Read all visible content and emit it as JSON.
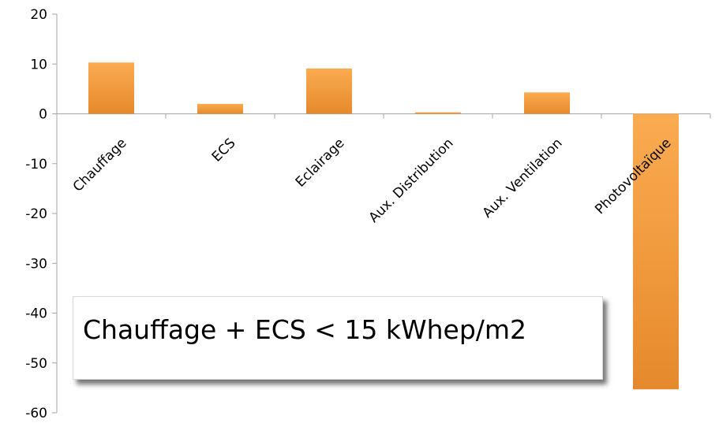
{
  "chart_data": {
    "type": "bar",
    "categories": [
      "Chauffage",
      "ECS",
      "Eclairage",
      "Aux. Distribution",
      "Aux. Ventilation",
      "Photovoltaïque"
    ],
    "values": [
      10.3,
      2.0,
      9.1,
      0.3,
      4.3,
      -55.3
    ],
    "title": "",
    "xlabel": "",
    "ylabel": "",
    "ylim": [
      -60,
      20
    ],
    "yticks": [
      20,
      10,
      0,
      -10,
      -20,
      -30,
      -40,
      -50,
      -60
    ],
    "grid": false,
    "legend": "none",
    "bar_color_light": "#f9a84a",
    "bar_color_dark": "#e88a2a"
  },
  "annotation": {
    "text": "Chauffage + ECS < 15 kWhep/m2"
  }
}
